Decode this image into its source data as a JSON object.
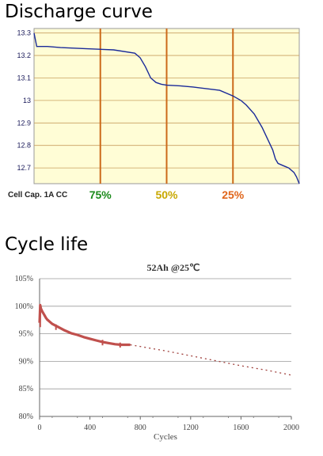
{
  "sections": {
    "discharge_title": "Discharge curve",
    "cycle_title": "Cycle life"
  },
  "chart_data": [
    {
      "type": "line",
      "ylim": [
        12.63,
        13.32
      ],
      "y_ticks": [
        13.3,
        13.2,
        13.1,
        13,
        12.9,
        12.8,
        12.7
      ],
      "grid": true,
      "background": "#fffdd6",
      "line_color": "#1a2a99",
      "x": [
        0.0,
        0.01,
        0.05,
        0.1,
        0.2,
        0.3,
        0.38,
        0.4,
        0.42,
        0.44,
        0.46,
        0.48,
        0.5,
        0.55,
        0.6,
        0.7,
        0.75,
        0.78,
        0.8,
        0.83,
        0.86,
        0.88,
        0.9,
        0.91,
        0.92,
        0.94,
        0.96,
        0.98,
        0.99,
        1.0
      ],
      "y": [
        13.3,
        13.24,
        13.24,
        13.235,
        13.23,
        13.225,
        13.21,
        13.19,
        13.15,
        13.1,
        13.08,
        13.072,
        13.068,
        13.065,
        13.06,
        13.045,
        13.02,
        13.0,
        12.98,
        12.94,
        12.88,
        12.83,
        12.78,
        12.74,
        12.72,
        12.71,
        12.7,
        12.68,
        12.66,
        12.63
      ],
      "markers": [
        {
          "x": 0.25,
          "label": "75%",
          "color": "#1a8a1a"
        },
        {
          "x": 0.5,
          "label": "50%",
          "color": "#c8a800"
        },
        {
          "x": 0.75,
          "label": "25%",
          "color": "#e0651a"
        }
      ],
      "marker_line_color": "#cc6a1a",
      "x_caption": "Cell Cap. 1A CC"
    },
    {
      "type": "line",
      "title": "52Ah @25℃",
      "xlabel": "Cycles",
      "xlim": [
        0,
        2000
      ],
      "ylim": [
        80,
        105
      ],
      "x_ticks": [
        0,
        400,
        800,
        1200,
        1600,
        2000
      ],
      "y_ticks": [
        {
          "v": 105,
          "label": "105%"
        },
        {
          "v": 100,
          "label": "100%"
        },
        {
          "v": 95,
          "label": "95%"
        },
        {
          "v": 90,
          "label": "90%"
        },
        {
          "v": 85,
          "label": "85%"
        },
        {
          "v": 80,
          "label": "80%"
        }
      ],
      "grid": true,
      "series": [
        {
          "style": "measured",
          "color": "#c0504d",
          "x": [
            0,
            5,
            10,
            20,
            30,
            40,
            50,
            60,
            80,
            100,
            150,
            200,
            250,
            300,
            350,
            400,
            450,
            500,
            550,
            600,
            650,
            700,
            720
          ],
          "y": [
            97.0,
            100.2,
            99.6,
            99.1,
            98.7,
            98.3,
            97.9,
            97.6,
            97.2,
            96.8,
            96.2,
            95.6,
            95.1,
            94.8,
            94.4,
            94.1,
            93.8,
            93.5,
            93.3,
            93.1,
            93.0,
            93.0,
            93.0
          ]
        },
        {
          "style": "projected",
          "color": "#a0413d",
          "x": [
            720,
            1000,
            1200,
            1400,
            1600,
            1800,
            2000
          ],
          "y": [
            93.0,
            91.9,
            91.0,
            90.1,
            89.2,
            88.4,
            87.5
          ]
        }
      ],
      "spikes": [
        {
          "x": 5,
          "y_low": 96.2,
          "y_high": 100.3
        },
        {
          "x": 130,
          "y_low": 95.7,
          "y_high": 96.7
        },
        {
          "x": 500,
          "y_low": 92.9,
          "y_high": 93.9
        },
        {
          "x": 640,
          "y_low": 92.5,
          "y_high": 93.4
        }
      ]
    }
  ]
}
